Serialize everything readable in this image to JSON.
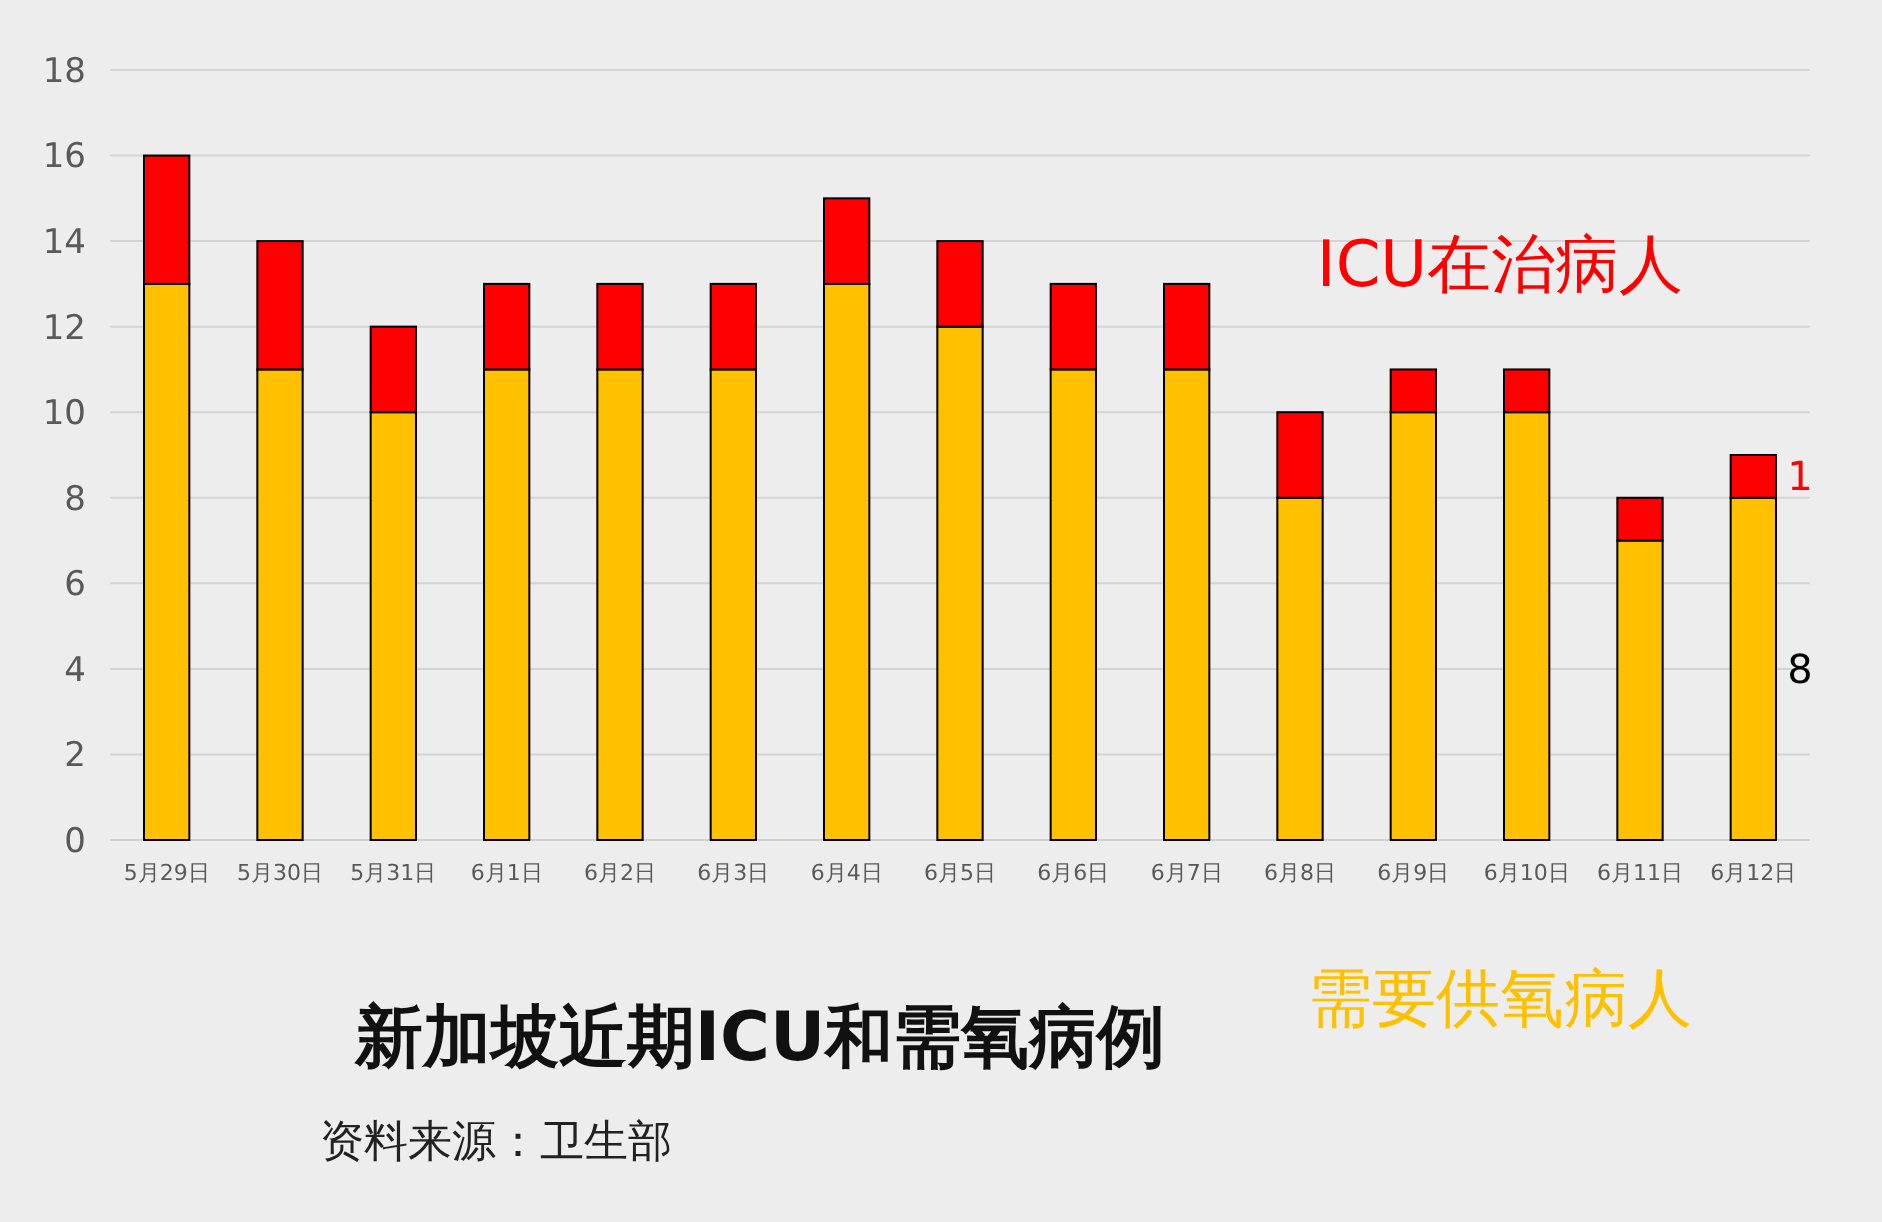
{
  "chart_data": {
    "type": "bar",
    "title": "新加坡近期ICU和需氧病例",
    "annotations": [
      "资料来源：卫生部"
    ],
    "categories": [
      "5月29日",
      "5月30日",
      "5月31日",
      "6月1日",
      "6月2日",
      "6月3日",
      "6月4日",
      "6月5日",
      "6月6日",
      "6月7日",
      "6月8日",
      "6月9日",
      "6月10日",
      "6月11日",
      "6月12日"
    ],
    "stacked": true,
    "ylim": [
      0,
      18
    ],
    "yticks": [
      0,
      2,
      4,
      6,
      8,
      10,
      12,
      14,
      16,
      18
    ],
    "grid": "y",
    "legend": "right",
    "series": [
      {
        "name": "需要供氧病人",
        "color": "#ffc000",
        "values": [
          13,
          11,
          10,
          11,
          11,
          11,
          13,
          12,
          11,
          11,
          8,
          10,
          10,
          7,
          8
        ],
        "value_labels": [
          null,
          null,
          null,
          null,
          null,
          null,
          null,
          null,
          null,
          null,
          null,
          null,
          null,
          null,
          "8"
        ]
      },
      {
        "name": "ICU在治病人",
        "color": "#ff0000",
        "values": [
          3,
          3,
          2,
          2,
          2,
          2,
          2,
          2,
          2,
          2,
          2,
          1,
          1,
          1,
          1
        ],
        "value_labels": [
          null,
          null,
          null,
          null,
          null,
          null,
          null,
          null,
          null,
          null,
          null,
          null,
          null,
          null,
          "1"
        ]
      }
    ]
  }
}
